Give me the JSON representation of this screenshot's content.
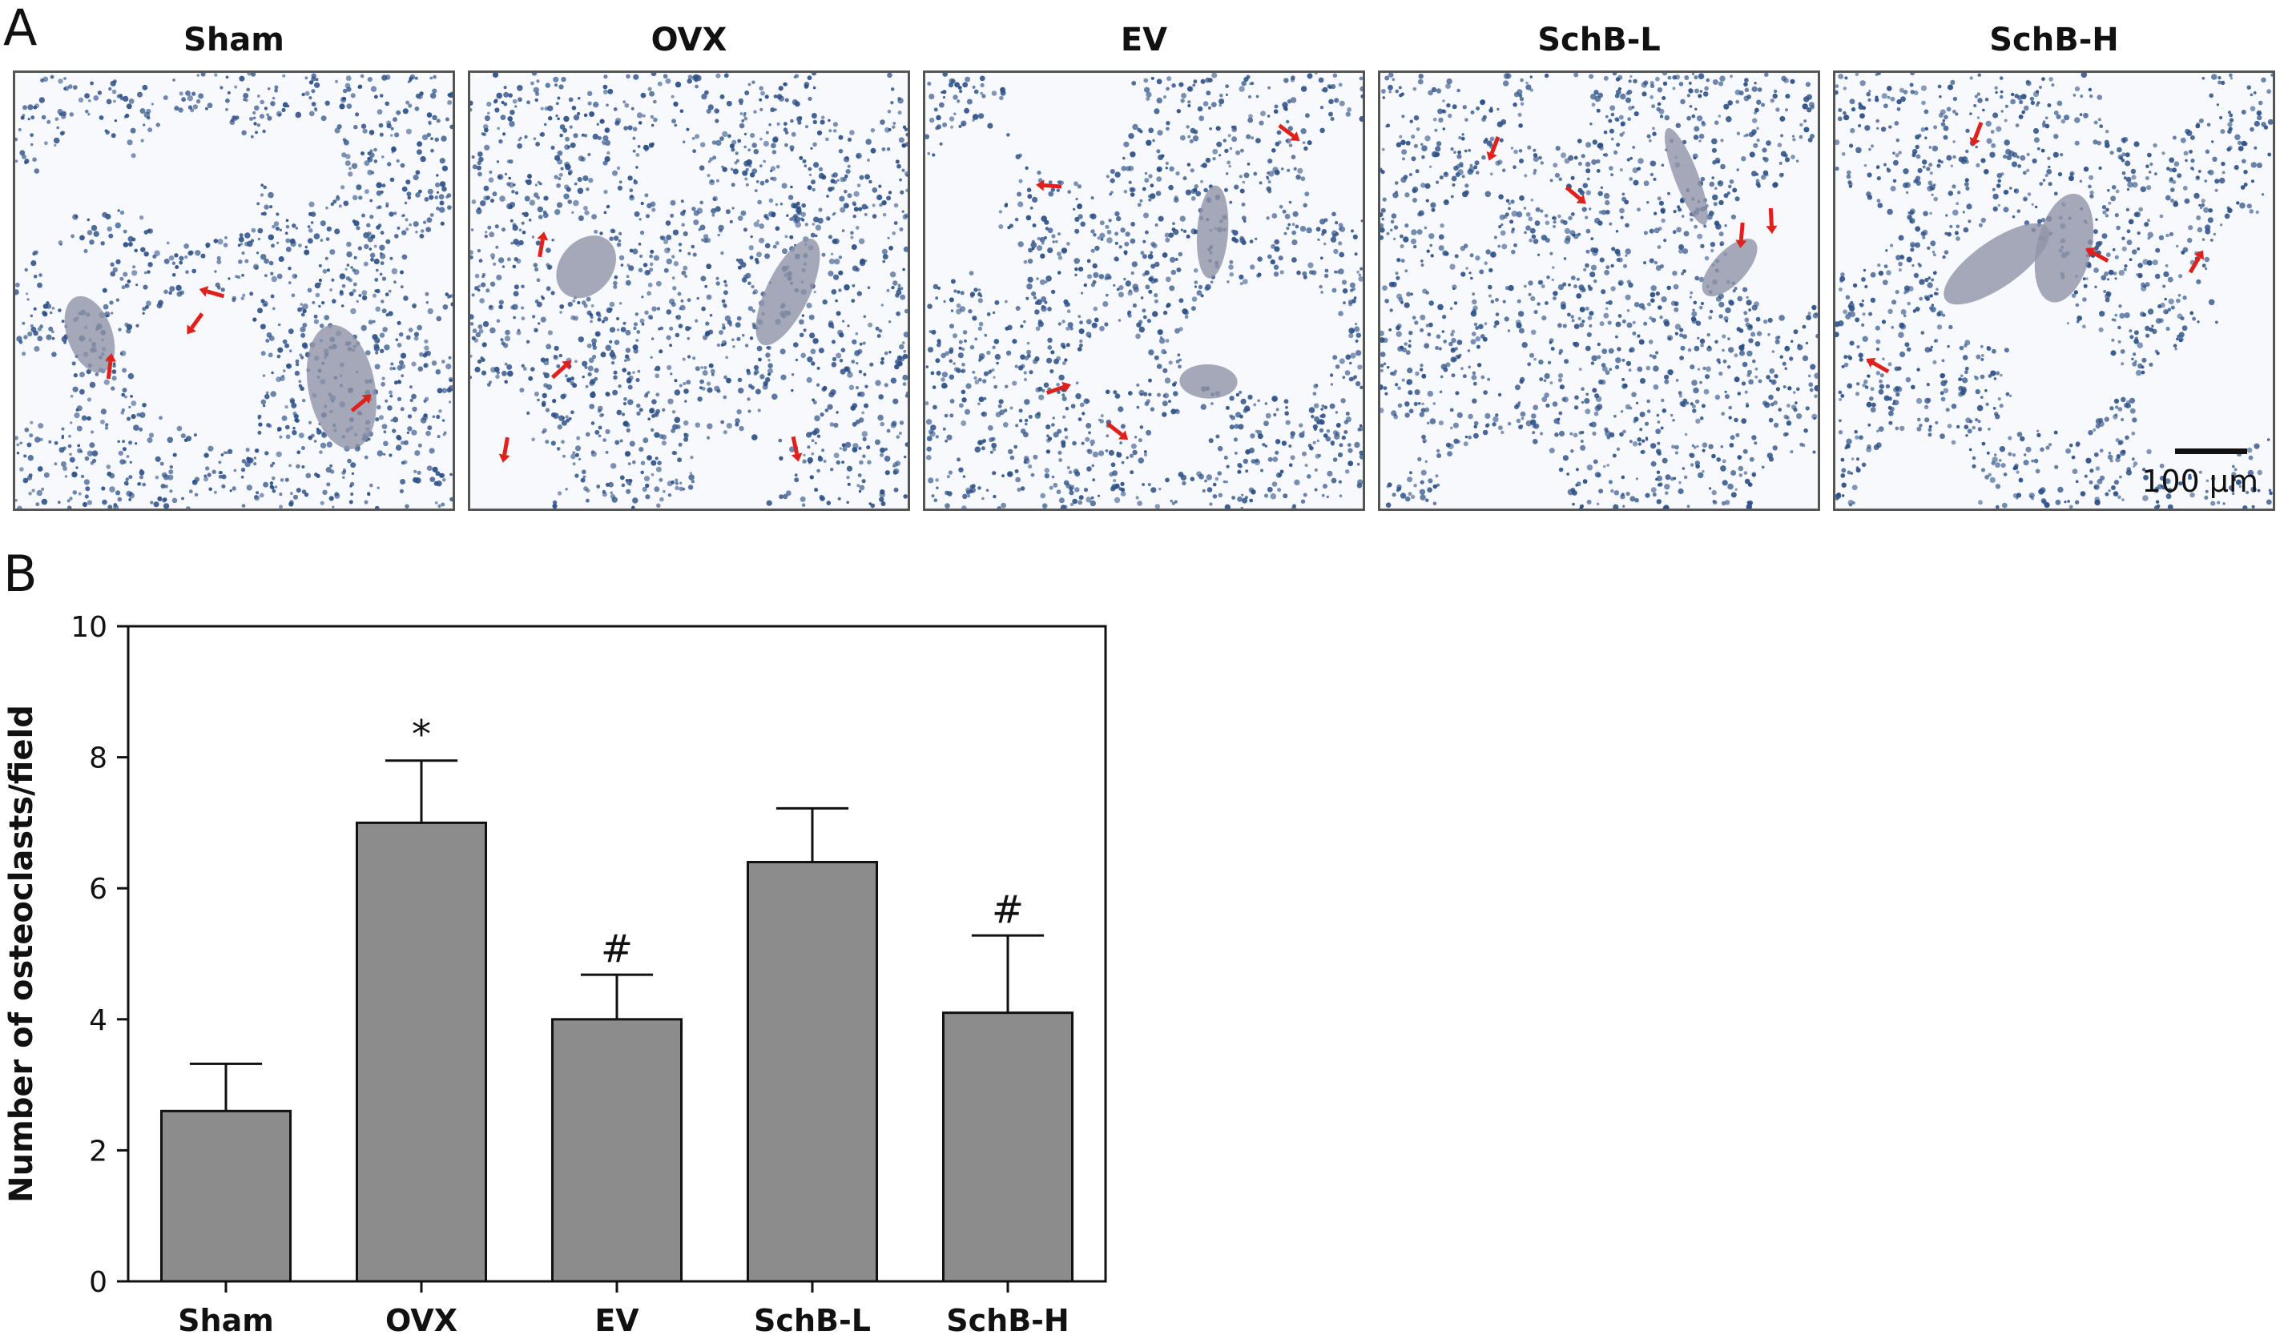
{
  "panel_labels": {
    "a": "A",
    "b": "B"
  },
  "images": {
    "titles": [
      "Sham",
      "OVX",
      "EV",
      "SchB-L",
      "SchB-H"
    ],
    "scale_label": "100 μm",
    "colors": {
      "stain_blue": "#2b4f86",
      "arrow_red": "#e0201a",
      "bone_grey": "#8e94a8"
    }
  },
  "chart_data": {
    "type": "bar",
    "categories": [
      "Sham",
      "OVX",
      "EV",
      "SchB-L",
      "SchB-H"
    ],
    "values": [
      2.6,
      7.0,
      4.0,
      6.4,
      4.1
    ],
    "error": [
      0.72,
      0.95,
      0.68,
      0.82,
      1.18
    ],
    "annotations": [
      "",
      "*",
      "#",
      "",
      "#"
    ],
    "ylabel": "Number of osteoclasts/field",
    "xlabel": "",
    "ylim": [
      0,
      10
    ],
    "yticks": [
      0,
      2,
      4,
      6,
      8,
      10
    ],
    "bar_color": "#8c8c8c",
    "grid": false
  }
}
